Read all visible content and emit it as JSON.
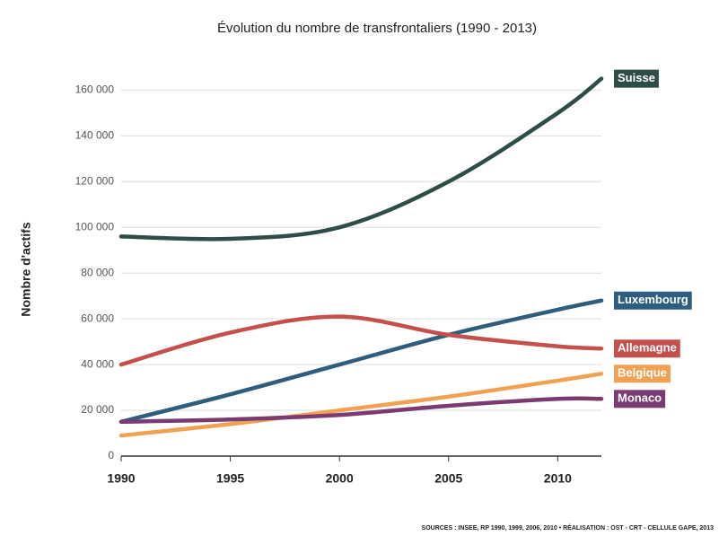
{
  "chart_data": {
    "type": "line",
    "title": "Évolution du nombre de transfrontaliers (1990 - 2013)",
    "y_label": "Nombre d'actifs",
    "source": "SOURCES : INSEE, RP 1990, 1999, 2006, 2010 • RÉALISATION : OST - CRT - CELLULE GAPE, 2013",
    "x": [
      1990,
      1995,
      2000,
      2005,
      2010,
      2012
    ],
    "xlim": [
      1990,
      2012
    ],
    "xticks": [
      1990,
      1995,
      2000,
      2005,
      2010
    ],
    "ylim": [
      0,
      168000
    ],
    "yticks": [
      0,
      {
        "value": 20000,
        "label": "20 000"
      },
      {
        "value": 40000,
        "label": "40 000"
      },
      {
        "value": 60000,
        "label": "60 000"
      },
      {
        "value": 80000,
        "label": "80 000"
      },
      {
        "value": 100000,
        "label": "100 000"
      },
      {
        "value": 120000,
        "label": "120 000"
      },
      {
        "value": 140000,
        "label": "140 000"
      },
      {
        "value": 160000,
        "label": "160 000"
      }
    ],
    "grid": true,
    "series": [
      {
        "name": "Suisse",
        "color": "#2f4d48",
        "values": [
          96000,
          95000,
          100000,
          120000,
          150000,
          165000
        ]
      },
      {
        "name": "Luxembourg",
        "color": "#2e5d7d",
        "values": [
          15000,
          27000,
          40000,
          53000,
          64000,
          68000
        ]
      },
      {
        "name": "Allemagne",
        "color": "#c4504c",
        "values": [
          40000,
          54000,
          61000,
          53000,
          48000,
          47000
        ]
      },
      {
        "name": "Belgique",
        "color": "#f0a252",
        "values": [
          9000,
          14000,
          20000,
          26000,
          33000,
          36000
        ]
      },
      {
        "name": "Monaco",
        "color": "#7b3a72",
        "values": [
          15000,
          16000,
          18000,
          22000,
          25000,
          25000
        ]
      }
    ]
  }
}
